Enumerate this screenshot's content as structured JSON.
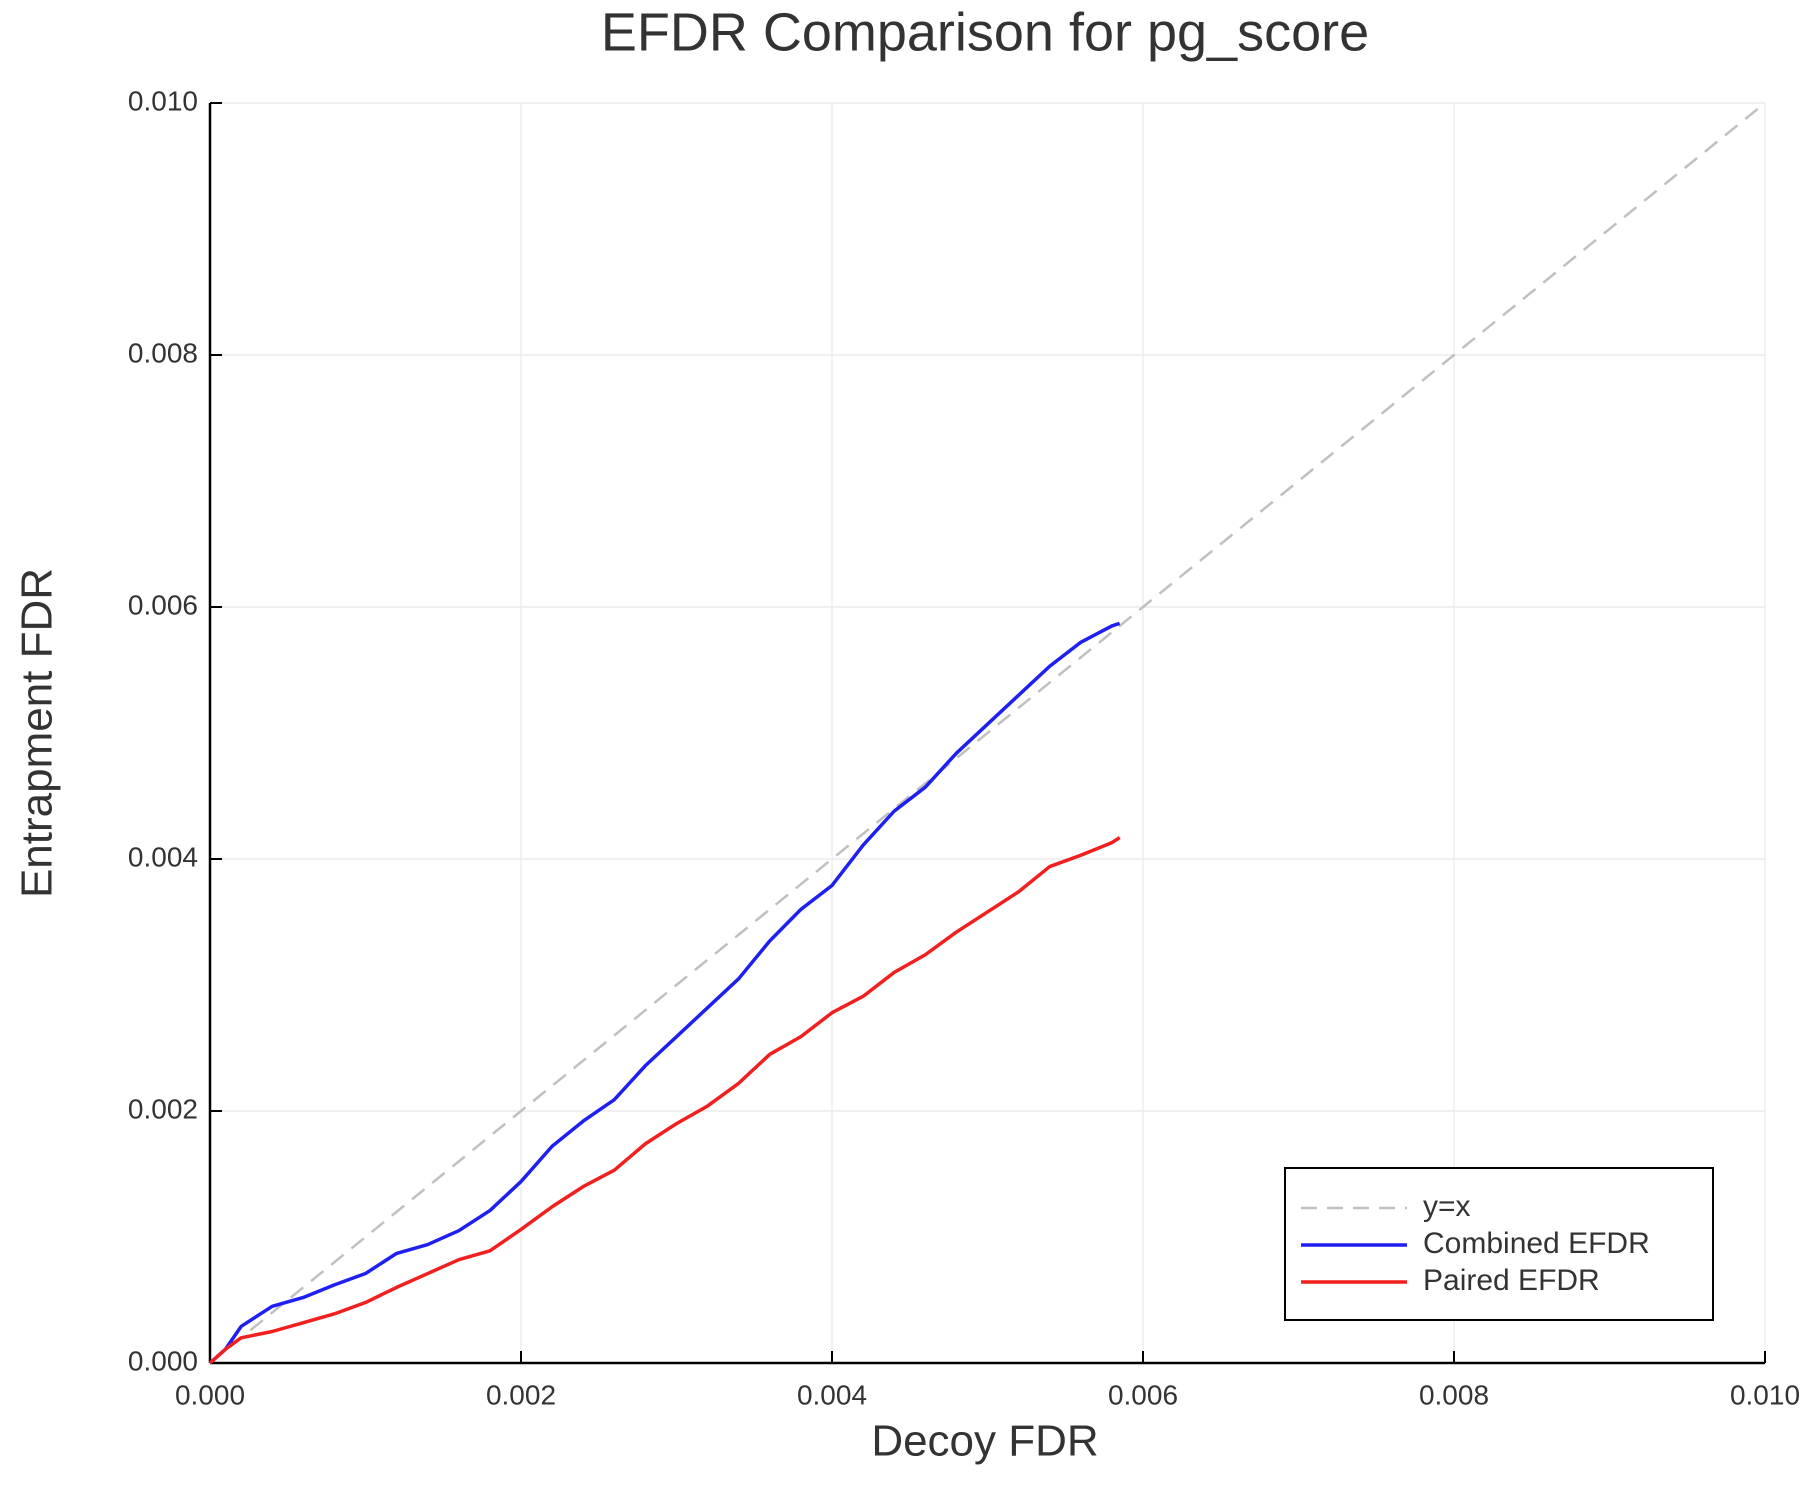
{
  "chart_data": {
    "type": "line",
    "title": "EFDR Comparison for pg_score",
    "xlabel": "Decoy FDR",
    "ylabel": "Entrapment FDR",
    "xlim": [
      0,
      0.01
    ],
    "ylim": [
      0,
      0.01
    ],
    "xticks": [
      {
        "value": 0,
        "label": "0.000"
      },
      {
        "value": 0.002,
        "label": "0.002"
      },
      {
        "value": 0.004,
        "label": "0.004"
      },
      {
        "value": 0.006,
        "label": "0.006"
      },
      {
        "value": 0.008,
        "label": "0.008"
      },
      {
        "value": 0.01,
        "label": "0.010"
      }
    ],
    "yticks": [
      {
        "value": 0,
        "label": "0.000"
      },
      {
        "value": 0.002,
        "label": "0.002"
      },
      {
        "value": 0.004,
        "label": "0.004"
      },
      {
        "value": 0.006,
        "label": "0.006"
      },
      {
        "value": 0.008,
        "label": "0.008"
      },
      {
        "value": 0.01,
        "label": "0.010"
      }
    ],
    "grid": true,
    "legend": "bottom right",
    "series": [
      {
        "name": "y=x",
        "color": "#c0c0c0",
        "dashed": true,
        "x": [
          0,
          0.01
        ],
        "values": [
          0,
          0.01
        ]
      },
      {
        "name": "Combined EFDR",
        "color": "#1f1ff2",
        "dashed": false,
        "x": [
          0,
          0.0001,
          0.0002,
          0.0004,
          0.0006,
          0.0008,
          0.001,
          0.0012,
          0.0014,
          0.0016,
          0.0018,
          0.002,
          0.0022,
          0.0024,
          0.0026,
          0.0028,
          0.003,
          0.0032,
          0.0034,
          0.0036,
          0.0038,
          0.004,
          0.0042,
          0.0044,
          0.0046,
          0.0048,
          0.005,
          0.0052,
          0.0054,
          0.0056,
          0.0058,
          0.00585
        ],
        "values": [
          0,
          0.00011,
          0.00029,
          0.00045,
          0.00052,
          0.00062,
          0.00071,
          0.00087,
          0.00094,
          0.00105,
          0.00121,
          0.00144,
          0.00172,
          0.00192,
          0.00209,
          0.00236,
          0.00259,
          0.00282,
          0.00305,
          0.00335,
          0.0036,
          0.00379,
          0.00411,
          0.00438,
          0.00457,
          0.00484,
          0.00507,
          0.0053,
          0.00553,
          0.00572,
          0.00585,
          0.00587
        ]
      },
      {
        "name": "Paired EFDR",
        "color": "#f21f1f",
        "dashed": false,
        "x": [
          0,
          0.0001,
          0.0002,
          0.0004,
          0.0006,
          0.0008,
          0.001,
          0.0012,
          0.0014,
          0.0016,
          0.0018,
          0.002,
          0.0022,
          0.0024,
          0.0026,
          0.0028,
          0.003,
          0.0032,
          0.0034,
          0.0036,
          0.0038,
          0.004,
          0.0042,
          0.0044,
          0.0046,
          0.0048,
          0.005,
          0.0052,
          0.0054,
          0.0056,
          0.0058,
          0.00585
        ],
        "values": [
          0,
          0.00011,
          0.0002,
          0.00025,
          0.00032,
          0.00039,
          0.00048,
          0.0006,
          0.00071,
          0.00082,
          0.00089,
          0.00106,
          0.00124,
          0.0014,
          0.00153,
          0.00174,
          0.0019,
          0.00204,
          0.00222,
          0.00245,
          0.00259,
          0.00278,
          0.00291,
          0.0031,
          0.00324,
          0.00342,
          0.00358,
          0.00374,
          0.00394,
          0.00403,
          0.00413,
          0.00417
        ]
      }
    ]
  }
}
